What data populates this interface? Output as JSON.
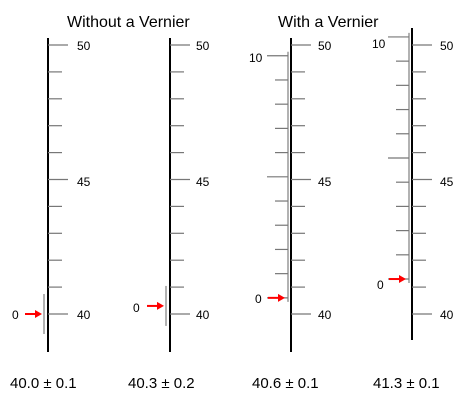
{
  "headings": {
    "without_vernier": "Without a Vernier",
    "with_vernier": "With  a Vernier"
  },
  "main_scale": {
    "labels": [
      "50",
      "45",
      "40"
    ],
    "min": 40,
    "max": 50,
    "divisions": 10
  },
  "vernier_scale": {
    "zero_label": "0",
    "ten_label": "10",
    "divisions": 10
  },
  "pointer_color": "#ff0000",
  "readings": [
    {
      "text": "40.0 ± 0.1",
      "value": 40.0
    },
    {
      "text": "40.3 ± 0.2",
      "value": 40.3
    },
    {
      "text": "40.6 ± 0.1",
      "value": 40.6
    },
    {
      "text": "41.3 ± 0.1",
      "value": 41.3
    }
  ]
}
